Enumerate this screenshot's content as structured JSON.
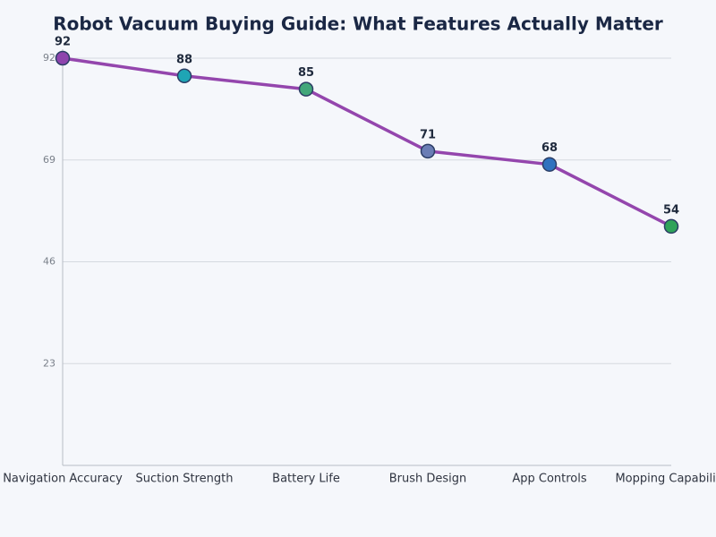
{
  "chart_data": {
    "type": "line",
    "title": "Robot Vacuum Buying Guide: What Features Actually Matter",
    "categories": [
      "Navigation Accuracy",
      "Suction Strength",
      "Battery Life",
      "Brush Design",
      "App Controls",
      "Mopping Capability"
    ],
    "values": [
      92,
      88,
      85,
      71,
      68,
      54
    ],
    "color": "#9446ad",
    "point_colors": [
      "#8e44ad",
      "#1fa5b5",
      "#42a77a",
      "#6a7db5",
      "#2f72bf",
      "#2fa35a"
    ],
    "ylim": [
      0,
      92
    ],
    "yticks": [
      23,
      46,
      69,
      92
    ],
    "grid": true
  }
}
